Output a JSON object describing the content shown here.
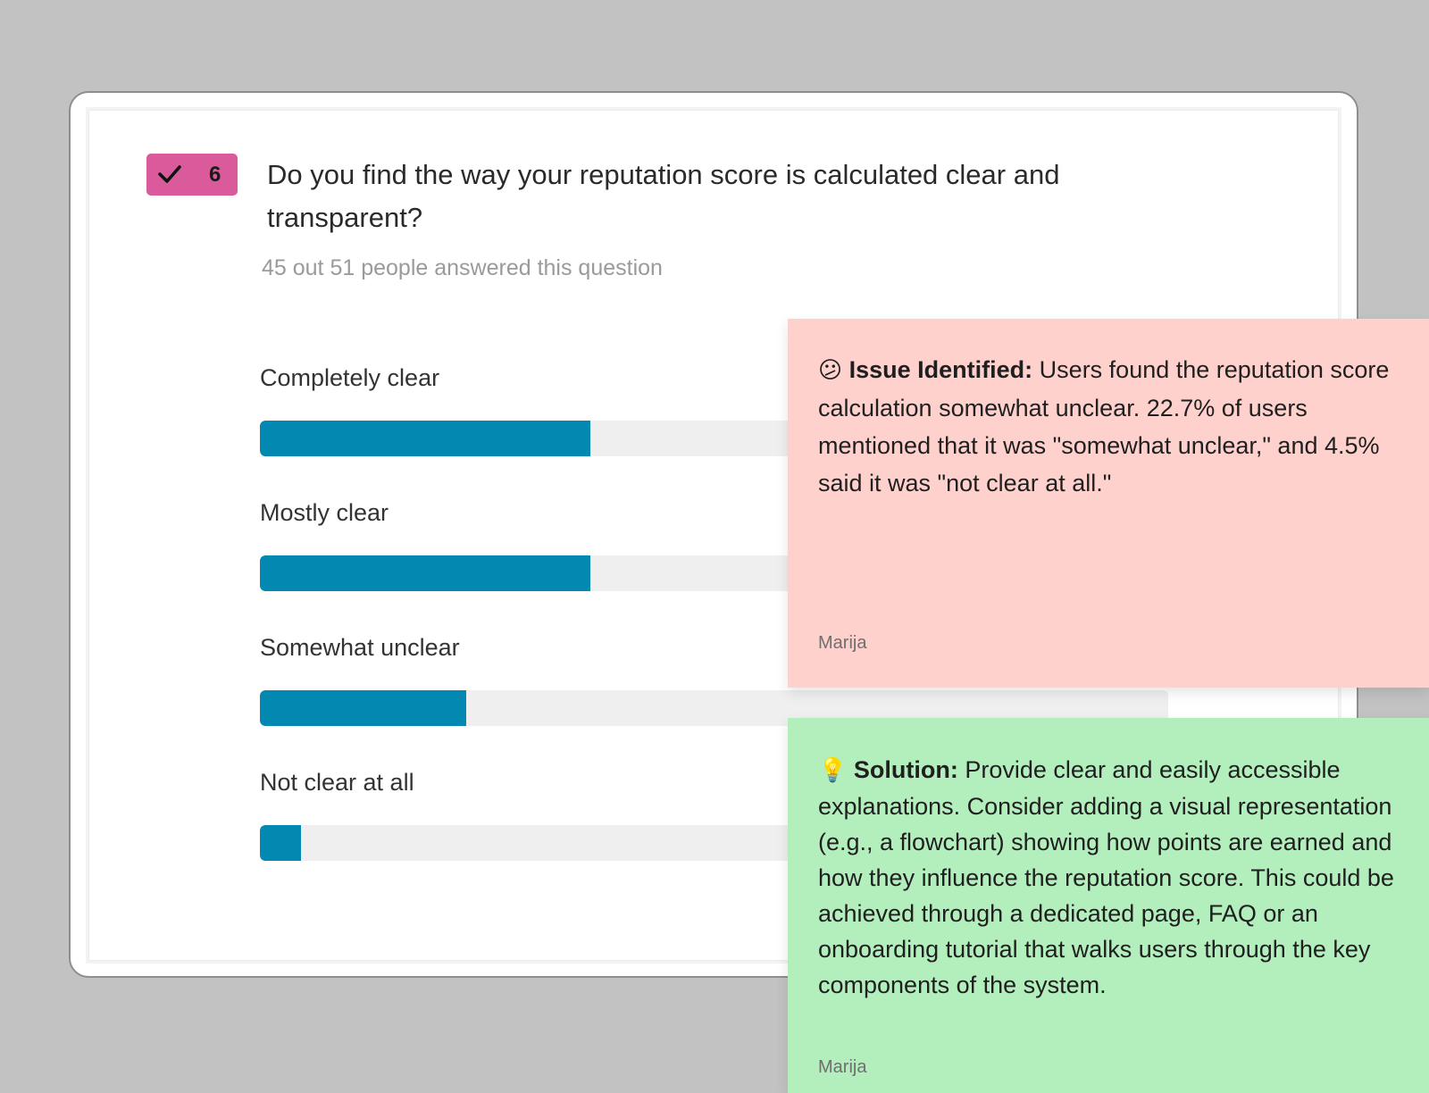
{
  "question": {
    "badge_number": "6",
    "badge_icon": "check-icon",
    "badge_color": "#d95b9c",
    "title": "Do you find the way your reputation score is calculated clear and transparent?",
    "subtitle": "45 out 51 people answered this question"
  },
  "options": [
    {
      "label": "Completely clear",
      "fraction": 0.364
    },
    {
      "label": "Mostly clear",
      "fraction": 0.364
    },
    {
      "label": "Somewhat unclear",
      "fraction": 0.227
    },
    {
      "label": "Not clear at all",
      "fraction": 0.045
    }
  ],
  "bar_color": "#0288b1",
  "notes": [
    {
      "kind": "issue",
      "emoji": "😕",
      "lead": "Issue Identified:",
      "body": " Users found the reputation score calculation somewhat unclear. 22.7% of users mentioned that it was \"somewhat unclear,\" and 4.5% said it was \"not clear at all.\"",
      "author": "Marija",
      "color": "#ffd1cd"
    },
    {
      "kind": "solution",
      "emoji": "💡",
      "lead": "Solution:",
      "body": " Provide clear and easily accessible explanations. Consider adding a visual representation (e.g., a flowchart) showing how points are earned and how they influence the reputation score. This could be achieved through a dedicated page, FAQ or an onboarding tutorial that walks users through the key components of the system.",
      "author": "Marija",
      "color": "#b3eebd"
    }
  ]
}
